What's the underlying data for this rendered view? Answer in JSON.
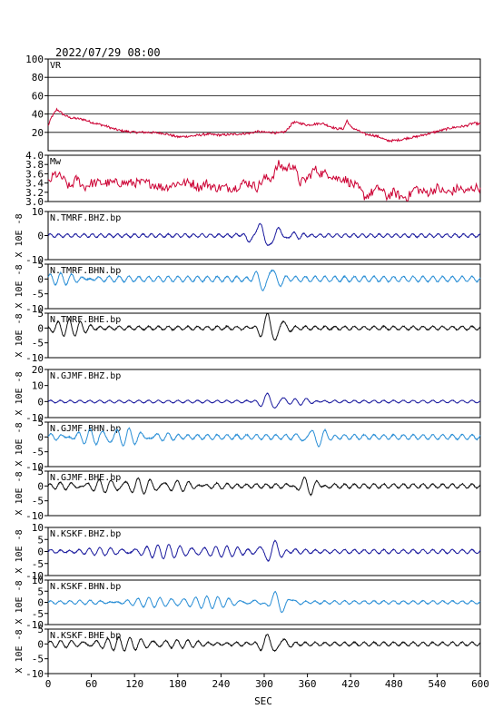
{
  "header": {
    "datetime": "2022/07/29 08:00"
  },
  "chart_data": {
    "type": "line",
    "xlabel": "SEC",
    "xlim": [
      0,
      600
    ],
    "xticks": [
      0,
      60,
      120,
      180,
      240,
      300,
      360,
      420,
      480,
      540,
      600
    ],
    "colors": {
      "vr": "#cc0033",
      "mw": "#cc0033",
      "bhz": "#1a1a9e",
      "bhn": "#2b8fd6",
      "bhe": "#111111",
      "grid": "#000000"
    },
    "panels": [
      {
        "id": "vr",
        "label": "VR",
        "ylabel": "",
        "color": "#cc0033",
        "ylim": [
          0,
          100
        ],
        "yticks": [
          20,
          40,
          60,
          80,
          100
        ],
        "hgrid": [
          20,
          40,
          60,
          80
        ],
        "x": [
          0,
          5,
          8,
          12,
          16,
          20,
          25,
          30,
          40,
          50,
          60,
          70,
          80,
          90,
          100,
          110,
          120,
          140,
          160,
          180,
          200,
          220,
          240,
          260,
          280,
          290,
          300,
          310,
          320,
          330,
          340,
          350,
          360,
          370,
          380,
          390,
          400,
          410,
          415,
          420,
          430,
          440,
          450,
          460,
          470,
          480,
          490,
          500,
          510,
          520,
          530,
          540,
          550,
          560,
          570,
          580,
          590,
          600
        ],
        "values": [
          27,
          37,
          40,
          45,
          43,
          40,
          38,
          36,
          35,
          34,
          31,
          29,
          27,
          24,
          22,
          21,
          20,
          20,
          19,
          15,
          16,
          18,
          17,
          18,
          19,
          21,
          20,
          20,
          19,
          21,
          31,
          30,
          28,
          29,
          30,
          27,
          24,
          24,
          33,
          26,
          22,
          18,
          17,
          15,
          11,
          11,
          12,
          14,
          15,
          17,
          19,
          21,
          23,
          25,
          26,
          27,
          30,
          29
        ]
      },
      {
        "id": "mw",
        "label": "Mw",
        "ylabel": "",
        "color": "#cc0033",
        "ylim": [
          3.0,
          4.0
        ],
        "yticks": [
          3.0,
          3.2,
          3.4,
          3.6,
          3.8,
          4.0
        ],
        "ytick_labels": [
          "3.0",
          "3.2",
          "3.4",
          "3.6",
          "3.8",
          "4.0"
        ],
        "hgrid": [],
        "x": [
          0,
          10,
          20,
          30,
          40,
          50,
          60,
          80,
          100,
          120,
          140,
          160,
          180,
          200,
          210,
          220,
          230,
          240,
          250,
          260,
          270,
          280,
          290,
          300,
          310,
          320,
          330,
          340,
          350,
          360,
          370,
          380,
          390,
          400,
          410,
          420,
          430,
          440,
          450,
          460,
          470,
          480,
          490,
          500,
          510,
          520,
          530,
          540,
          550,
          560,
          570,
          580,
          590,
          600
        ],
        "values": [
          3.4,
          3.6,
          3.5,
          3.3,
          3.5,
          3.3,
          3.4,
          3.4,
          3.4,
          3.4,
          3.4,
          3.3,
          3.4,
          3.4,
          3.3,
          3.4,
          3.3,
          3.3,
          3.3,
          3.3,
          3.4,
          3.4,
          3.3,
          3.5,
          3.5,
          3.8,
          3.7,
          3.8,
          3.4,
          3.5,
          3.7,
          3.6,
          3.6,
          3.5,
          3.5,
          3.4,
          3.3,
          3.1,
          3.2,
          3.3,
          3.1,
          3.2,
          3.1,
          3.1,
          3.3,
          3.2,
          3.2,
          3.3,
          3.2,
          3.2,
          3.3,
          3.2,
          3.3,
          3.3
        ]
      },
      {
        "id": "tmrf-bhz",
        "label": "N.TMRF.BHZ.bp",
        "ylabel": "X 10E -8",
        "color": "#1a1a9e",
        "ylim": [
          -10,
          10
        ],
        "yticks": [
          -10,
          0,
          10
        ],
        "packets": [
          {
            "x": 0,
            "amp": 0.7,
            "period": 12,
            "width": 600
          },
          {
            "x": 300,
            "amp": -5,
            "period": 28,
            "width": 22
          },
          {
            "x": 335,
            "amp": 1.2,
            "period": 18,
            "width": 20
          }
        ]
      },
      {
        "id": "tmrf-bhn",
        "label": "N.TMRF.BHN.bp",
        "ylabel": "X 10E -8",
        "color": "#2b8fd6",
        "ylim": [
          -10,
          5
        ],
        "yticks": [
          -10,
          -5,
          0,
          5
        ],
        "packets": [
          {
            "x": 0,
            "amp": 0.9,
            "period": 14,
            "width": 600
          },
          {
            "x": 30,
            "amp": 1.3,
            "period": 16,
            "width": 40
          },
          {
            "x": 305,
            "amp": 4,
            "period": 24,
            "width": 18
          }
        ]
      },
      {
        "id": "tmrf-bhe",
        "label": "N.TMRF.BHE.bp",
        "ylabel": "X 10E -8",
        "color": "#111111",
        "ylim": [
          -10,
          5
        ],
        "yticks": [
          -10,
          -5,
          0,
          5
        ],
        "packets": [
          {
            "x": 0,
            "amp": 0.6,
            "period": 14,
            "width": 600
          },
          {
            "x": 25,
            "amp": 2.5,
            "period": 16,
            "width": 30
          },
          {
            "x": 310,
            "amp": -5,
            "period": 22,
            "width": 18
          }
        ]
      },
      {
        "id": "gjmf-bhz",
        "label": "N.GJMF.BHZ.bp",
        "ylabel": "X 10E -8",
        "color": "#1a1a9e",
        "ylim": [
          -10,
          20
        ],
        "yticks": [
          -10,
          0,
          10,
          20
        ],
        "packets": [
          {
            "x": 0,
            "amp": 0.8,
            "period": 14,
            "width": 600
          },
          {
            "x": 310,
            "amp": -5,
            "period": 22,
            "width": 18
          },
          {
            "x": 355,
            "amp": 1.5,
            "period": 18,
            "width": 22
          }
        ]
      },
      {
        "id": "gjmf-bhn",
        "label": "N.GJMF.BHN.bp",
        "ylabel": "X 10E -8",
        "color": "#2b8fd6",
        "ylim": [
          -10,
          5
        ],
        "yticks": [
          -10,
          -5,
          0,
          5
        ],
        "packets": [
          {
            "x": 0,
            "amp": 0.8,
            "period": 14,
            "width": 600
          },
          {
            "x": 90,
            "amp": 2.5,
            "period": 18,
            "width": 60
          },
          {
            "x": 370,
            "amp": -3,
            "period": 20,
            "width": 18
          }
        ]
      },
      {
        "id": "gjmf-bhe",
        "label": "N.GJMF.BHE.bp",
        "ylabel": "X 10E -8",
        "color": "#111111",
        "ylim": [
          -10,
          5
        ],
        "yticks": [
          -10,
          -5,
          0,
          5
        ],
        "packets": [
          {
            "x": 0,
            "amp": 0.7,
            "period": 14,
            "width": 600
          },
          {
            "x": 120,
            "amp": 2,
            "period": 18,
            "width": 90
          },
          {
            "x": 360,
            "amp": -2.5,
            "period": 20,
            "width": 20
          }
        ]
      },
      {
        "id": "kskf-bhz",
        "label": "N.KSKF.BHZ.bp",
        "ylabel": "X 10E -8",
        "color": "#1a1a9e",
        "ylim": [
          -10,
          10
        ],
        "yticks": [
          -10,
          -5,
          0,
          5,
          10
        ],
        "packets": [
          {
            "x": 0,
            "amp": 0.8,
            "period": 14,
            "width": 600
          },
          {
            "x": 180,
            "amp": 2.2,
            "period": 16,
            "width": 110
          },
          {
            "x": 310,
            "amp": 4,
            "period": 22,
            "width": 18
          }
        ]
      },
      {
        "id": "kskf-bhn",
        "label": "N.KSKF.BHN.bp",
        "ylabel": "X 10E -8",
        "color": "#2b8fd6",
        "ylim": [
          -10,
          10
        ],
        "yticks": [
          -10,
          -5,
          0,
          5,
          10
        ],
        "packets": [
          {
            "x": 0,
            "amp": 0.7,
            "period": 14,
            "width": 600
          },
          {
            "x": 200,
            "amp": 2.2,
            "period": 16,
            "width": 100
          },
          {
            "x": 320,
            "amp": -4,
            "period": 24,
            "width": 20
          }
        ]
      },
      {
        "id": "kskf-bhe",
        "label": "N.KSKF.BHE.bp",
        "ylabel": "X 10E -8",
        "color": "#111111",
        "ylim": [
          -10,
          5
        ],
        "yticks": [
          -10,
          -5,
          0,
          5
        ],
        "packets": [
          {
            "x": 0,
            "amp": 0.6,
            "period": 14,
            "width": 600
          },
          {
            "x": 110,
            "amp": 1.8,
            "period": 16,
            "width": 90
          },
          {
            "x": 310,
            "amp": -3,
            "period": 22,
            "width": 20
          }
        ]
      }
    ]
  }
}
